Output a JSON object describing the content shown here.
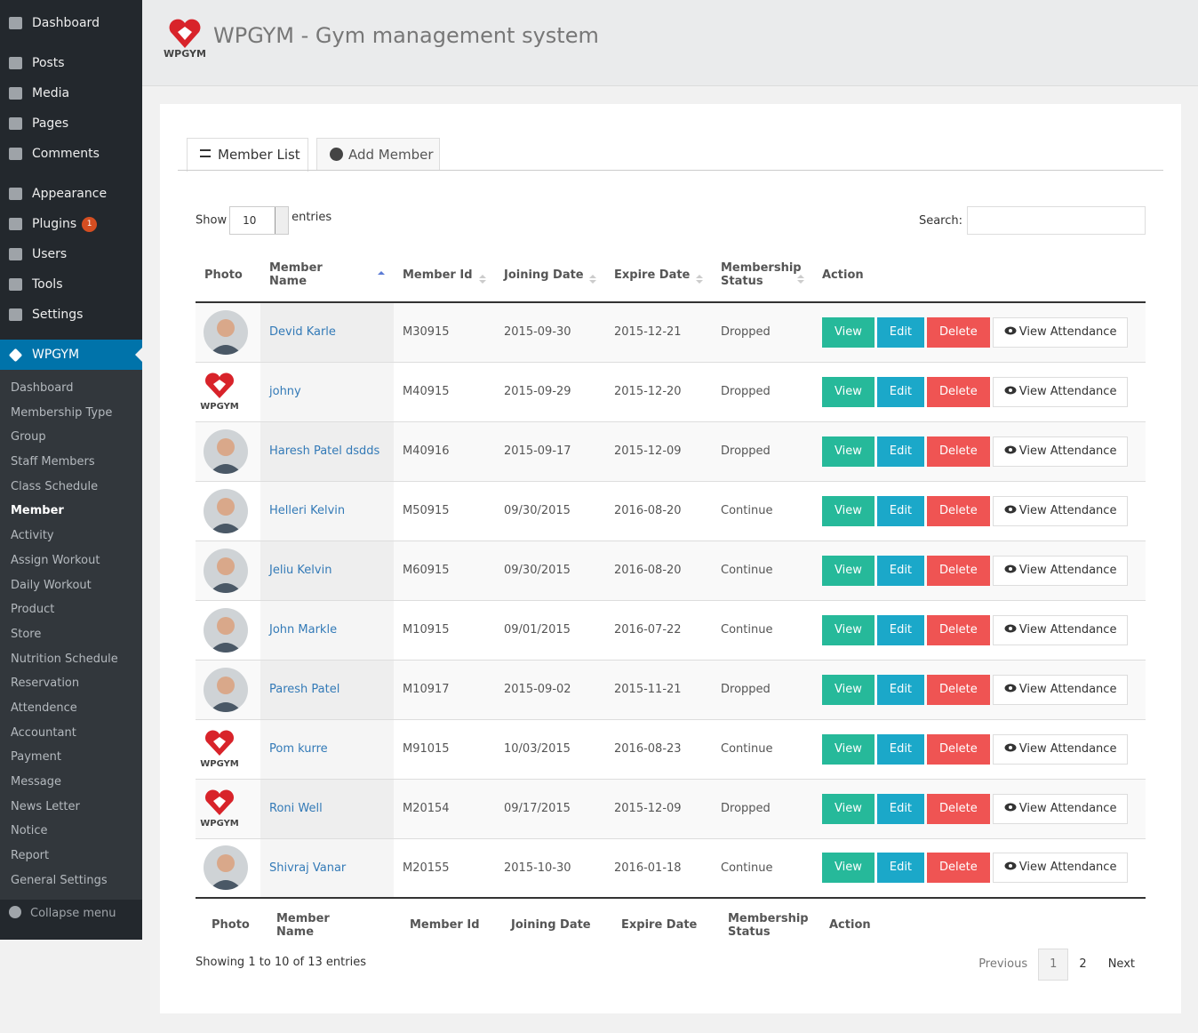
{
  "sidebar": {
    "menu": [
      {
        "label": "Dashboard"
      },
      {
        "label": "Posts"
      },
      {
        "label": "Media"
      },
      {
        "label": "Pages"
      },
      {
        "label": "Comments"
      },
      {
        "label": "Appearance"
      },
      {
        "label": "Plugins",
        "badge": "1"
      },
      {
        "label": "Users"
      },
      {
        "label": "Tools"
      },
      {
        "label": "Settings"
      },
      {
        "label": "WPGYM",
        "active": true
      }
    ],
    "submenu": [
      "Dashboard",
      "Membership Type",
      "Group",
      "Staff Members",
      "Class Schedule",
      "Member",
      "Activity",
      "Assign Workout",
      "Daily Workout",
      "Product",
      "Store",
      "Nutrition Schedule",
      "Reservation",
      "Attendence",
      "Accountant",
      "Payment",
      "Message",
      "News Letter",
      "Notice",
      "Report",
      "General Settings"
    ],
    "current_submenu": 5,
    "collapse": "Collapse menu"
  },
  "header": {
    "logo_text": "WPGYM",
    "title": "WPGYM - Gym management system"
  },
  "tabs": [
    "Member List",
    "Add Member"
  ],
  "controls": {
    "show_label": "Show",
    "entries_value": "10",
    "entries_label": "entries",
    "search_label": "Search:"
  },
  "table": {
    "columns": [
      "Photo",
      "Member Name",
      "Member Id",
      "Joining Date",
      "Expire Date",
      "Membership Status",
      "Action"
    ],
    "actions": [
      "View",
      "Edit",
      "Delete",
      "View Attendance"
    ],
    "rows": [
      {
        "photo": "avatar",
        "name": "Devid Karle",
        "id": "M30915",
        "joining": "2015-09-30",
        "expire": "2015-12-21",
        "status": "Dropped"
      },
      {
        "photo": "logo",
        "name": "johny",
        "id": "M40915",
        "joining": "2015-09-29",
        "expire": "2015-12-20",
        "status": "Dropped"
      },
      {
        "photo": "avatar",
        "name": "Haresh Patel dsdds",
        "id": "M40916",
        "joining": "2015-09-17",
        "expire": "2015-12-09",
        "status": "Dropped"
      },
      {
        "photo": "avatar",
        "name": "Helleri Kelvin",
        "id": "M50915",
        "joining": "09/30/2015",
        "expire": "2016-08-20",
        "status": "Continue"
      },
      {
        "photo": "avatar",
        "name": "Jeliu Kelvin",
        "id": "M60915",
        "joining": "09/30/2015",
        "expire": "2016-08-20",
        "status": "Continue"
      },
      {
        "photo": "avatar",
        "name": "John Markle",
        "id": "M10915",
        "joining": "09/01/2015",
        "expire": "2016-07-22",
        "status": "Continue"
      },
      {
        "photo": "avatar",
        "name": "Paresh Patel",
        "id": "M10917",
        "joining": "2015-09-02",
        "expire": "2015-11-21",
        "status": "Dropped"
      },
      {
        "photo": "logo",
        "name": "Pom kurre",
        "id": "M91015",
        "joining": "10/03/2015",
        "expire": "2016-08-23",
        "status": "Continue"
      },
      {
        "photo": "logo",
        "name": "Roni Well",
        "id": "M20154",
        "joining": "09/17/2015",
        "expire": "2015-12-09",
        "status": "Dropped"
      },
      {
        "photo": "avatar",
        "name": "Shivraj Vanar",
        "id": "M20155",
        "joining": "2015-10-30",
        "expire": "2016-01-18",
        "status": "Continue"
      }
    ]
  },
  "info": "Showing 1 to 10 of 13 entries",
  "pagination": {
    "previous": "Previous",
    "pages": [
      "1",
      "2"
    ],
    "current": 0,
    "next": "Next"
  }
}
